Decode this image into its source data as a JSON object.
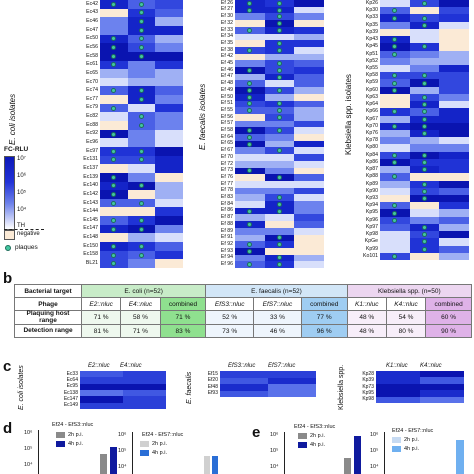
{
  "panel_a": {
    "ecoli": {
      "title": "E. coli isolates",
      "rows": [
        "Ec42",
        "Ec43",
        "Ec46",
        "Ec47",
        "Ec50",
        "Ec56",
        "Ec58",
        "Ec61",
        "Ec65",
        "Ec70",
        "Ec74",
        "Ec77",
        "Ec79",
        "Ec82",
        "Ec88",
        "Ec92",
        "Ec96",
        "Ec97",
        "Ec131",
        "Ec137",
        "Ec139",
        "Ec140",
        "Ec142",
        "Ec143",
        "Ec144",
        "Ec145",
        "Ec147",
        "Ec148",
        "Ec150",
        "Ec158",
        "BL21"
      ]
    },
    "efaecalis": {
      "title": "E. faecalis isolates",
      "rows": [
        "Ef 26",
        "Ef 27",
        "Ef 30",
        "Ef 32",
        "Ef 33",
        "Ef 34",
        "Ef 35",
        "Ef 38",
        "Ef 42",
        "Ef 45",
        "Ef 46",
        "Ef 47",
        "Ef 48",
        "Ef 49",
        "Ef 50",
        "Ef 51",
        "Ef 55",
        "Ef 56",
        "Ef 57",
        "Ef 58",
        "Ef 64",
        "Ef 65",
        "Ef 67",
        "Ef 70",
        "Ef 72",
        "Ef 73",
        "Ef 76",
        "Ef 77",
        "Ef 78",
        "Ef 83",
        "Ef 84",
        "Ef 86",
        "Ef 87",
        "Ef 88",
        "Ef 89",
        "Ef 91",
        "Ef 92",
        "Ef 93",
        "Ef 94",
        "Ef 96"
      ]
    },
    "klebsiella": {
      "title": "Klebsiella spp. isolates",
      "rows": [
        "Kp26",
        "Kp30",
        "Kp33",
        "Kp35",
        "Kp39",
        "Kp43",
        "Kp45",
        "Kp51",
        "Kp52",
        "Kp55",
        "Kp58",
        "Kp59",
        "Kp60",
        "Kp63",
        "Kp64",
        "Kp66",
        "Kp67",
        "Kp70",
        "Kp76",
        "Kp78",
        "Kp80",
        "Kp84",
        "Kp86",
        "Kp87",
        "Kp88",
        "Kp89",
        "Kp90",
        "Kp93",
        "Kp94",
        "Kp95",
        "Kp96",
        "Kp97",
        "Kp98",
        "KpGe",
        "Kp99",
        "Ko101"
      ]
    },
    "legend": {
      "title": "FC-RLU",
      "ticks": [
        "10⁷",
        "10⁶",
        "10⁵",
        "10⁴",
        "TH"
      ],
      "negative": "negative",
      "plaques": "plaques"
    }
  },
  "panel_b": {
    "letter": "b",
    "header": {
      "target": "Bacterial target",
      "ecoli": "E. coli (n=52)",
      "efaecalis": "E. faecalis (n=52)",
      "klebsiella": "Klebsiella spp. (n=50)"
    },
    "phage_row": {
      "label": "Phage",
      "values": [
        "E2::nluc",
        "E4::nluc",
        "combined",
        "EfS3::nluc",
        "EfS7::nluc",
        "combined",
        "K1::nluc",
        "K4::nluc",
        "combined"
      ]
    },
    "plaquing_row": {
      "label": "Plaquing host range",
      "values": [
        "71 %",
        "58 %",
        "71 %",
        "52 %",
        "33 %",
        "77 %",
        "48 %",
        "54 %",
        "60 %"
      ]
    },
    "detection_row": {
      "label": "Detection range",
      "values": [
        "81 %",
        "71 %",
        "83 %",
        "73 %",
        "46 %",
        "96 %",
        "48 %",
        "80 %",
        "90 %"
      ]
    },
    "colors": {
      "ecoli_header": "#c8ecc8",
      "ecoli_combined": "#8fe08f",
      "efaecalis_header": "#d2e6f7",
      "efaecalis_combined": "#9fcdf2",
      "klebsiella_header": "#ecd6f0",
      "klebsiella_combined": "#dfb2e8"
    }
  },
  "panel_c": {
    "letter": "c",
    "ecoli": {
      "title": "E. coli isolates",
      "cols": [
        "E2::nluc",
        "E4::nluc"
      ],
      "rows": [
        "Ec33",
        "Ec64",
        "Ec95",
        "Ec138",
        "Ec147",
        "Ec149"
      ]
    },
    "efaecalis": {
      "title": "E. faecalis",
      "cols": [
        "EfS3::nluc",
        "EfS7::nluc"
      ],
      "rows": [
        "Ef15",
        "Ef20",
        "Ef48",
        "Ef93"
      ]
    },
    "klebsiella": {
      "title": "Klebsiella spp.",
      "cols": [
        "K1::nluc",
        "K4::nluc"
      ],
      "rows": [
        "Kp28",
        "Kp39",
        "Kp73",
        "Kp95",
        "Kp98"
      ]
    }
  },
  "panel_d": {
    "letter": "d",
    "chart1_title": "Ef24 - EfS3::nluc",
    "chart2_title": "Ef24 - EfS7::nluc",
    "legend": [
      "2h p.i.",
      "4h p.i."
    ],
    "yticks": [
      "10⁶",
      "10⁵",
      "10⁴"
    ]
  },
  "panel_e": {
    "letter": "e",
    "chart1_title": "Ef24 - EfS3::nluc",
    "chart2_title": "Ef24 - EfS7::nluc",
    "legend": [
      "2h p.i.",
      "4h p.i."
    ],
    "yticks": [
      "10⁶",
      "10⁵",
      "10⁴"
    ]
  }
}
